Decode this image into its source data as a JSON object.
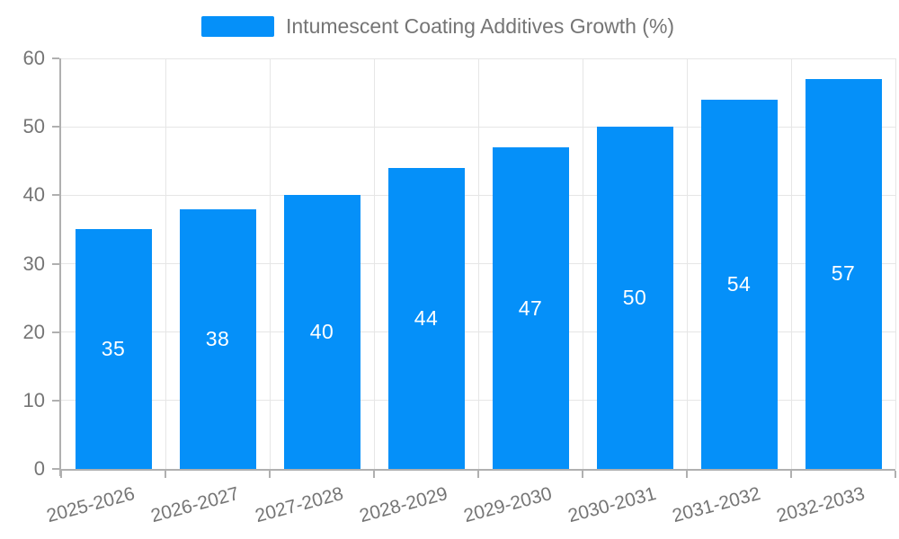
{
  "legend": {
    "label": "Intumescent Coating Additives Growth (%)"
  },
  "chart_data": {
    "type": "bar",
    "title": "Intumescent Coating Additives Growth (%)",
    "categories": [
      "2025-2026",
      "2026-2027",
      "2027-2028",
      "2028-2029",
      "2029-2030",
      "2030-2031",
      "2031-2032",
      "2032-2033"
    ],
    "values": [
      35,
      38,
      40,
      44,
      47,
      50,
      54,
      57
    ],
    "value_labels": [
      "35",
      "38",
      "40",
      "44",
      "47",
      "50",
      "54",
      "57"
    ],
    "xlabel": "",
    "ylabel": "",
    "ylim": [
      0,
      60
    ],
    "yticks": [
      0,
      10,
      20,
      30,
      40,
      50,
      60
    ],
    "grid": true,
    "legend_position": "top-center",
    "bar_color": "#0590f9",
    "value_label_color": "#ffffff",
    "axis_line_color": "#b0b0b0",
    "grid_line_color": "#e6e6e6",
    "tick_label_color": "#757575",
    "background_color": "#ffffff"
  }
}
